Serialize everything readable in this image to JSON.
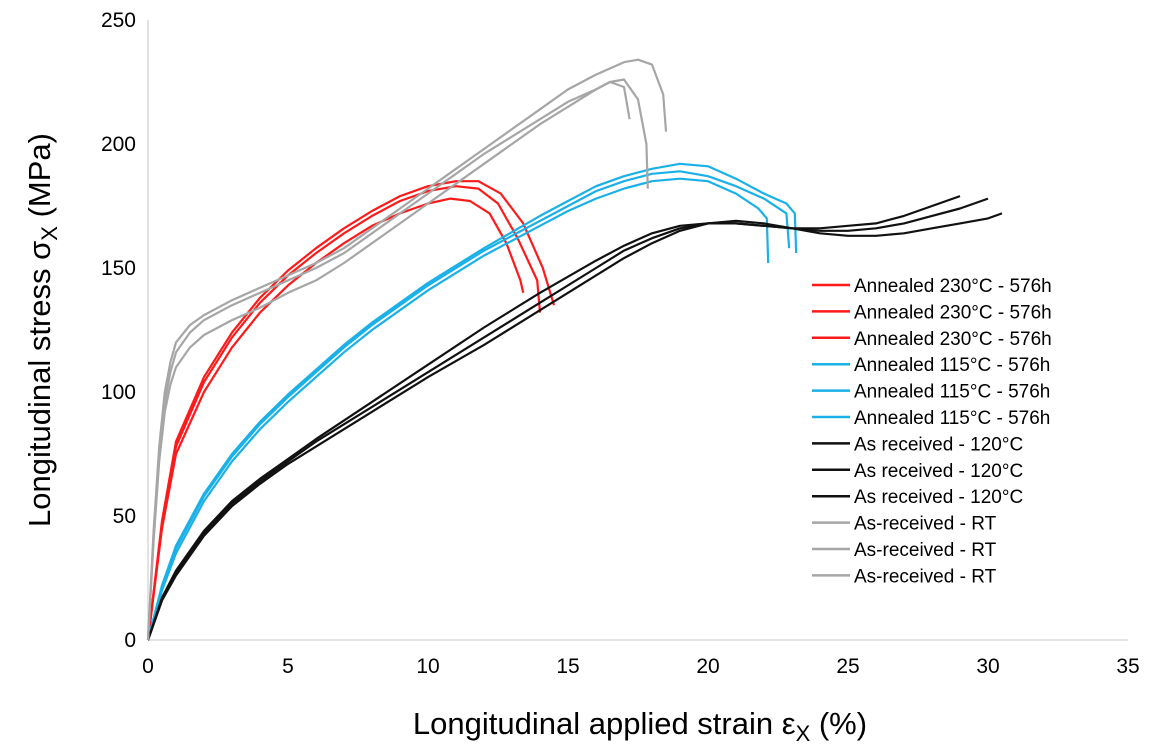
{
  "chart_data": {
    "type": "line",
    "title": "",
    "xlabel": "Longitudinal applied strain εX (%)",
    "ylabel": "Longitudinal stress σX (MPa)",
    "xlabel_parts": [
      "Longitudinal applied strain ε",
      "X",
      " (%)"
    ],
    "ylabel_parts": [
      "Longitudinal stress σ",
      "X",
      " (MPa)"
    ],
    "xlim": [
      0,
      35
    ],
    "ylim": [
      0,
      250
    ],
    "xticks": [
      "0",
      "5",
      "10",
      "15",
      "20",
      "25",
      "30",
      "35"
    ],
    "yticks": [
      "0",
      "50",
      "100",
      "150",
      "200",
      "250"
    ],
    "grid": false,
    "legend_position": "right",
    "colors": {
      "annealed_230": "#ff1a1a",
      "annealed_115": "#1ab0e8",
      "as_received_120": "#111111",
      "as_received_rt": "#a6a6a6"
    },
    "series": [
      {
        "name": "Annealed 230°C - 576h",
        "color": "#ff1a1a",
        "x": [
          0,
          0.5,
          1,
          2,
          3,
          4,
          5,
          6,
          7,
          8,
          9,
          10,
          10.8,
          11.5,
          12.2,
          12.8,
          13.3,
          13.4
        ],
        "y": [
          0,
          45,
          75,
          100,
          118,
          132,
          143,
          152,
          160,
          167,
          172,
          176,
          178,
          177,
          172,
          160,
          145,
          140
        ]
      },
      {
        "name": "Annealed 230°C - 576h",
        "color": "#ff1a1a",
        "x": [
          0,
          0.5,
          1,
          2,
          3,
          4,
          5,
          6,
          7,
          8,
          9,
          10,
          11,
          11.8,
          12.5,
          13.2,
          13.9,
          14.0
        ],
        "y": [
          0,
          47,
          78,
          104,
          122,
          136,
          147,
          156,
          164,
          171,
          177,
          181,
          183,
          182,
          176,
          162,
          145,
          132
        ]
      },
      {
        "name": "Annealed 230°C - 576h",
        "color": "#ff1a1a",
        "x": [
          0,
          0.5,
          1,
          2,
          3,
          4,
          5,
          6,
          7,
          8,
          9,
          10,
          11,
          11.8,
          12.6,
          13.4,
          14.1,
          14.5
        ],
        "y": [
          0,
          48,
          80,
          106,
          124,
          138,
          149,
          158,
          166,
          173,
          179,
          183,
          185,
          185,
          180,
          168,
          150,
          135
        ]
      },
      {
        "name": "Annealed 115°C - 576h",
        "color": "#1ab0e8",
        "x": [
          0,
          0.5,
          1,
          2,
          3,
          4,
          5,
          6,
          7,
          8,
          10,
          12,
          14,
          15,
          16,
          17,
          18,
          19,
          20,
          21,
          21.8,
          22.1,
          22.15
        ],
        "y": [
          0,
          20,
          35,
          56,
          72,
          85,
          96,
          106,
          116,
          125,
          141,
          155,
          167,
          173,
          178,
          182,
          185,
          186,
          185,
          180,
          174,
          170,
          152
        ]
      },
      {
        "name": "Annealed 115°C - 576h",
        "color": "#1ab0e8",
        "x": [
          0,
          0.5,
          1,
          2,
          3,
          4,
          5,
          6,
          7,
          8,
          10,
          12,
          14,
          15,
          16,
          17,
          18,
          19,
          20,
          21,
          22,
          22.8,
          22.9
        ],
        "y": [
          0,
          21,
          37,
          58,
          74,
          87,
          98,
          108,
          118,
          127,
          143,
          157,
          169,
          175,
          181,
          185,
          188,
          189,
          187,
          183,
          178,
          172,
          158
        ]
      },
      {
        "name": "Annealed 115°C - 576h",
        "color": "#1ab0e8",
        "x": [
          0,
          0.5,
          1,
          2,
          3,
          4,
          5,
          6,
          7,
          8,
          10,
          12,
          14,
          15,
          16,
          17,
          18,
          19,
          20,
          21,
          22,
          22.8,
          23.1,
          23.15
        ],
        "y": [
          0,
          22,
          38,
          59,
          75,
          88,
          99,
          109,
          119,
          128,
          144,
          158,
          171,
          177,
          183,
          187,
          190,
          192,
          191,
          186,
          180,
          176,
          172,
          156
        ]
      },
      {
        "name": "As received - 120°C",
        "color": "#111111",
        "x": [
          0,
          0.5,
          1,
          2,
          3,
          4,
          5,
          6,
          8,
          10,
          12,
          14,
          16,
          17,
          18,
          19,
          20,
          21,
          22,
          23,
          24,
          25,
          26,
          27,
          28,
          29
        ],
        "y": [
          0,
          17,
          28,
          44,
          56,
          65,
          73,
          81,
          96,
          111,
          126,
          140,
          153,
          159,
          164,
          167,
          168,
          168,
          167,
          166,
          166,
          167,
          168,
          171,
          175,
          179
        ]
      },
      {
        "name": "As received - 120°C",
        "color": "#111111",
        "x": [
          0,
          0.5,
          1,
          2,
          3,
          4,
          5,
          6,
          8,
          10,
          12,
          14,
          16,
          17,
          18,
          19,
          20,
          21,
          22,
          23,
          24,
          25,
          26,
          27,
          28,
          29,
          30
        ],
        "y": [
          0,
          16,
          27,
          43,
          55,
          64,
          72,
          80,
          94,
          108,
          122,
          136,
          150,
          157,
          162,
          166,
          168,
          168,
          167,
          166,
          165,
          165,
          166,
          168,
          171,
          174,
          178
        ]
      },
      {
        "name": "As received - 120°C",
        "color": "#111111",
        "x": [
          0,
          0.5,
          1,
          2,
          3,
          4,
          5,
          6,
          8,
          10,
          12,
          14,
          16,
          17,
          18,
          19,
          20,
          21,
          22,
          23,
          24,
          25,
          26,
          27,
          28,
          29,
          30,
          30.5
        ],
        "y": [
          0,
          16,
          26,
          42,
          54,
          63,
          71,
          78,
          92,
          106,
          119,
          133,
          147,
          154,
          160,
          165,
          168,
          169,
          168,
          166,
          164,
          163,
          163,
          164,
          166,
          168,
          170,
          172
        ]
      },
      {
        "name": "As-received - RT",
        "color": "#a6a6a6",
        "x": [
          0,
          0.2,
          0.4,
          0.6,
          0.8,
          1,
          1.5,
          2,
          3,
          4,
          5,
          6,
          7,
          8,
          9,
          10,
          11,
          12,
          13,
          14,
          15,
          16,
          16.5,
          17,
          17.2
        ],
        "y": [
          0,
          40,
          72,
          92,
          103,
          110,
          118,
          123,
          129,
          134,
          140,
          145,
          152,
          160,
          168,
          176,
          184,
          192,
          200,
          208,
          215,
          222,
          225,
          223,
          210
        ]
      },
      {
        "name": "As-received - RT",
        "color": "#a6a6a6",
        "x": [
          0,
          0.2,
          0.4,
          0.6,
          0.8,
          1,
          1.5,
          2,
          3,
          4,
          5,
          6,
          7,
          8,
          9,
          10,
          11,
          12,
          13,
          14,
          15,
          16,
          16.5,
          17,
          17.5,
          17.8,
          17.85
        ],
        "y": [
          0,
          42,
          75,
          96,
          108,
          116,
          124,
          129,
          135,
          140,
          145,
          150,
          156,
          164,
          172,
          180,
          188,
          196,
          203,
          210,
          217,
          222,
          225,
          226,
          218,
          200,
          182
        ]
      },
      {
        "name": "As-received - RT",
        "color": "#a6a6a6",
        "x": [
          0,
          0.2,
          0.4,
          0.6,
          0.8,
          1,
          1.5,
          2,
          3,
          4,
          5,
          6,
          7,
          8,
          9,
          10,
          11,
          12,
          13,
          14,
          15,
          16,
          17,
          17.5,
          18,
          18.4,
          18.5
        ],
        "y": [
          0,
          44,
          78,
          100,
          112,
          120,
          127,
          131,
          137,
          142,
          147,
          152,
          158,
          166,
          174,
          182,
          190,
          198,
          206,
          214,
          222,
          228,
          233,
          234,
          232,
          220,
          205
        ]
      }
    ]
  }
}
